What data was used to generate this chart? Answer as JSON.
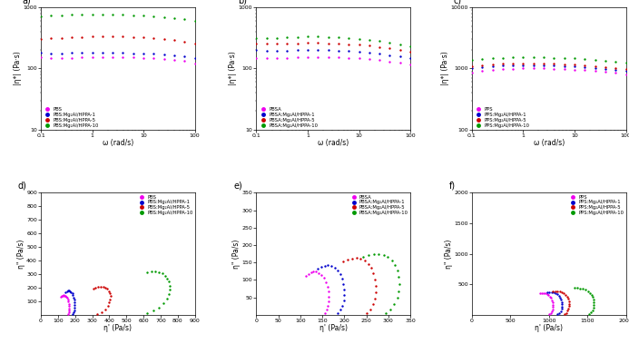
{
  "top_row": {
    "a": {
      "label": "a)",
      "ylabel": "|n*| (Pa.s)",
      "xlabel": "w (rad/s)",
      "ylim": [
        10,
        1000
      ],
      "xlim": [
        0.1,
        100
      ],
      "yticks_log": [
        10,
        100,
        1000
      ],
      "xticks_log": [
        0.1,
        1,
        10,
        100
      ],
      "series": [
        {
          "label": "PBS",
          "color": "#EE00EE",
          "omega": [
            0.1,
            0.158,
            0.251,
            0.398,
            0.631,
            1.0,
            1.585,
            2.512,
            3.981,
            6.31,
            10.0,
            15.85,
            25.12,
            39.81,
            63.1,
            100.0
          ],
          "eta": [
            155,
            148,
            148,
            150,
            152,
            154,
            155,
            155,
            154,
            152,
            150,
            147,
            143,
            139,
            132,
            122
          ]
        },
        {
          "label": "PBS:Mg2Al/HPPA-1",
          "color": "#0000CC",
          "omega": [
            0.1,
            0.158,
            0.251,
            0.398,
            0.631,
            1.0,
            1.585,
            2.512,
            3.981,
            6.31,
            10.0,
            15.85,
            25.12,
            39.81,
            63.1,
            100.0
          ],
          "eta": [
            180,
            178,
            178,
            180,
            182,
            183,
            183,
            182,
            181,
            179,
            177,
            174,
            170,
            165,
            158,
            148
          ]
        },
        {
          "label": "PBS:Mg2Al/HPPA-5",
          "color": "#CC0000",
          "omega": [
            0.1,
            0.158,
            0.251,
            0.398,
            0.631,
            1.0,
            1.585,
            2.512,
            3.981,
            6.31,
            10.0,
            15.85,
            25.12,
            39.81,
            63.1,
            100.0
          ],
          "eta": [
            305,
            310,
            318,
            325,
            330,
            333,
            335,
            334,
            332,
            328,
            322,
            314,
            304,
            291,
            275,
            255
          ]
        },
        {
          "label": "PBS:Mg2Al/HPPA-10",
          "color": "#009900",
          "omega": [
            0.1,
            0.158,
            0.251,
            0.398,
            0.631,
            1.0,
            1.585,
            2.512,
            3.981,
            6.31,
            10.0,
            15.85,
            25.12,
            39.81,
            63.1,
            100.0
          ],
          "eta": [
            720,
            740,
            752,
            760,
            765,
            768,
            770,
            768,
            764,
            755,
            742,
            726,
            705,
            680,
            648,
            605
          ]
        }
      ]
    },
    "b": {
      "label": "b)",
      "ylabel": "|n*| (Pa.s)",
      "xlabel": "w (rad/s)",
      "ylim": [
        10,
        1000
      ],
      "xlim": [
        0.1,
        100
      ],
      "yticks_log": [
        10,
        100,
        1000
      ],
      "xticks_log": [
        0.1,
        1,
        10,
        100
      ],
      "series": [
        {
          "label": "PBSA",
          "color": "#EE00EE",
          "omega": [
            0.1,
            0.158,
            0.251,
            0.398,
            0.631,
            1.0,
            1.585,
            2.512,
            3.981,
            6.31,
            10.0,
            15.85,
            25.12,
            39.81,
            63.1,
            100.0
          ],
          "eta": [
            150,
            148,
            148,
            150,
            152,
            154,
            155,
            154,
            152,
            149,
            146,
            142,
            137,
            131,
            124,
            116
          ]
        },
        {
          "label": "PBSA:Mg2Al/HPPA-1",
          "color": "#0000CC",
          "omega": [
            0.1,
            0.158,
            0.251,
            0.398,
            0.631,
            1.0,
            1.585,
            2.512,
            3.981,
            6.31,
            10.0,
            15.85,
            25.12,
            39.81,
            63.1,
            100.0
          ],
          "eta": [
            200,
            198,
            196,
            198,
            200,
            202,
            202,
            200,
            197,
            193,
            188,
            182,
            175,
            167,
            158,
            148
          ]
        },
        {
          "label": "PBSA:Mg2Al/HPPA-5",
          "color": "#CC0000",
          "omega": [
            0.1,
            0.158,
            0.251,
            0.398,
            0.631,
            1.0,
            1.585,
            2.512,
            3.981,
            6.31,
            10.0,
            15.85,
            25.12,
            39.81,
            63.1,
            100.0
          ],
          "eta": [
            255,
            255,
            255,
            258,
            260,
            262,
            262,
            260,
            256,
            250,
            244,
            236,
            226,
            214,
            201,
            187
          ]
        },
        {
          "label": "PBSA:Mg2Al/HPPA-10",
          "color": "#009900",
          "omega": [
            0.1,
            0.158,
            0.251,
            0.398,
            0.631,
            1.0,
            1.585,
            2.512,
            3.981,
            6.31,
            10.0,
            15.85,
            25.12,
            39.81,
            63.1,
            100.0
          ],
          "eta": [
            310,
            315,
            320,
            325,
            330,
            332,
            332,
            330,
            325,
            318,
            308,
            297,
            283,
            267,
            250,
            232
          ]
        }
      ]
    },
    "c": {
      "label": "c)",
      "ylabel": "|n*| (Pa.s)",
      "xlabel": "w (rad/s)",
      "ylim": [
        100,
        10000
      ],
      "xlim": [
        0.1,
        100
      ],
      "yticks_log": [
        100,
        1000,
        10000
      ],
      "xticks_log": [
        0.1,
        1,
        10,
        100
      ],
      "series": [
        {
          "label": "PPS",
          "color": "#EE00EE",
          "omega": [
            0.1,
            0.158,
            0.251,
            0.398,
            0.631,
            1.0,
            1.585,
            2.512,
            3.981,
            6.31,
            10.0,
            15.85,
            25.12,
            39.81,
            63.1,
            100.0
          ],
          "eta": [
            870,
            910,
            945,
            975,
            995,
            1005,
            1008,
            1005,
            996,
            982,
            964,
            942,
            916,
            886,
            852,
            812
          ]
        },
        {
          "label": "PPS:Mg2Al/HPPA-1",
          "color": "#0000CC",
          "omega": [
            0.1,
            0.158,
            0.251,
            0.398,
            0.631,
            1.0,
            1.585,
            2.512,
            3.981,
            6.31,
            10.0,
            15.85,
            25.12,
            39.81,
            63.1,
            100.0
          ],
          "eta": [
            1020,
            1060,
            1090,
            1110,
            1122,
            1128,
            1128,
            1122,
            1112,
            1096,
            1075,
            1050,
            1020,
            985,
            946,
            902
          ]
        },
        {
          "label": "PPS:Mg2Al/HPPA-5",
          "color": "#CC0000",
          "omega": [
            0.1,
            0.158,
            0.251,
            0.398,
            0.631,
            1.0,
            1.585,
            2.512,
            3.981,
            6.31,
            10.0,
            15.85,
            25.12,
            39.81,
            63.1,
            100.0
          ],
          "eta": [
            1100,
            1145,
            1178,
            1200,
            1215,
            1222,
            1222,
            1215,
            1202,
            1184,
            1162,
            1135,
            1103,
            1066,
            1024,
            978
          ]
        },
        {
          "label": "PPS:Mg2Al/HPPA-10",
          "color": "#009900",
          "omega": [
            0.1,
            0.158,
            0.251,
            0.398,
            0.631,
            1.0,
            1.585,
            2.512,
            3.981,
            6.31,
            10.0,
            15.85,
            25.12,
            39.81,
            63.1,
            100.0
          ],
          "eta": [
            1380,
            1430,
            1470,
            1500,
            1520,
            1530,
            1530,
            1522,
            1508,
            1488,
            1462,
            1430,
            1392,
            1348,
            1298,
            1242
          ]
        }
      ]
    }
  },
  "bottom_row": {
    "d": {
      "label": "d)",
      "ylabel": "n'' (Pa/s)",
      "xlabel": "n' (Pa/s)",
      "xlim": [
        0,
        900
      ],
      "ylim": [
        0,
        900
      ],
      "xticks": [
        0,
        100,
        200,
        300,
        400,
        500,
        600,
        700,
        800,
        900
      ],
      "yticks": [
        100,
        200,
        300,
        400,
        500,
        600,
        700,
        800,
        900
      ],
      "series": [
        {
          "label": "PBS",
          "color": "#EE00EE",
          "x": [
            158,
            162,
            165,
            166,
            166,
            164,
            161,
            157,
            153,
            148,
            143,
            138,
            133,
            128,
            123,
            118
          ],
          "y": [
            8,
            18,
            32,
            48,
            65,
            82,
            98,
            112,
            124,
            133,
            138,
            142,
            143,
            141,
            137,
            130
          ]
        },
        {
          "label": "PBS:Mg2Al/HPPA-1",
          "color": "#0000CC",
          "x": [
            185,
            190,
            194,
            197,
            198,
            197,
            195,
            192,
            188,
            183,
            177,
            171,
            165,
            158,
            152,
            145
          ],
          "y": [
            8,
            18,
            32,
            50,
            70,
            90,
            110,
            128,
            144,
            157,
            167,
            174,
            177,
            177,
            174,
            168
          ]
        },
        {
          "label": "PBS:Mg2Al/HPPA-5",
          "color": "#CC0000",
          "x": [
            330,
            355,
            375,
            390,
            400,
            405,
            406,
            403,
            397,
            388,
            377,
            364,
            350,
            335,
            320,
            305
          ],
          "y": [
            8,
            22,
            42,
            65,
            90,
            115,
            138,
            159,
            176,
            190,
            200,
            206,
            208,
            206,
            200,
            192
          ]
        },
        {
          "label": "PBS:Mg2Al/HPPA-10",
          "color": "#009900",
          "x": [
            620,
            660,
            692,
            718,
            736,
            748,
            754,
            754,
            750,
            740,
            726,
            709,
            689,
            668,
            646,
            623
          ],
          "y": [
            12,
            30,
            55,
            85,
            118,
            152,
            185,
            216,
            244,
            268,
            288,
            304,
            314,
            320,
            320,
            315
          ]
        }
      ]
    },
    "e": {
      "label": "e)",
      "ylabel": "n'' (Pa/s)",
      "xlabel": "n' (Pa/s)",
      "xlim": [
        0,
        350
      ],
      "ylim": [
        0,
        350
      ],
      "xticks": [
        0,
        50,
        100,
        150,
        200,
        250,
        300,
        350
      ],
      "yticks": [
        50,
        100,
        150,
        200,
        250,
        300,
        350
      ],
      "series": [
        {
          "label": "PBSA",
          "color": "#EE00EE",
          "x": [
            155,
            160,
            163,
            165,
            165,
            164,
            161,
            157,
            153,
            148,
            142,
            136,
            130,
            124,
            118,
            112
          ],
          "y": [
            5,
            14,
            25,
            38,
            52,
            67,
            81,
            94,
            105,
            114,
            120,
            124,
            125,
            123,
            118,
            112
          ]
        },
        {
          "label": "PBSA:Mg2Al/HPPA-1",
          "color": "#0000CC",
          "x": [
            185,
            191,
            196,
            199,
            200,
            200,
            198,
            195,
            190,
            185,
            178,
            171,
            163,
            155,
            147,
            139
          ],
          "y": [
            5,
            14,
            26,
            40,
            56,
            72,
            88,
            103,
            116,
            127,
            135,
            140,
            142,
            141,
            138,
            132
          ]
        },
        {
          "label": "PBSA:Mg2Al/HPPA-5",
          "color": "#CC0000",
          "x": [
            250,
            258,
            265,
            270,
            272,
            272,
            270,
            266,
            261,
            254,
            246,
            237,
            228,
            218,
            208,
            198
          ],
          "y": [
            5,
            16,
            30,
            47,
            65,
            84,
            102,
            119,
            134,
            146,
            155,
            161,
            163,
            162,
            158,
            152
          ]
        },
        {
          "label": "PBSA:Mg2Al/HPPA-10",
          "color": "#009900",
          "x": [
            295,
            305,
            313,
            320,
            324,
            325,
            324,
            320,
            315,
            308,
            299,
            289,
            278,
            267,
            255,
            243
          ],
          "y": [
            5,
            16,
            31,
            49,
            68,
            88,
            108,
            126,
            142,
            155,
            165,
            172,
            175,
            175,
            171,
            165
          ]
        }
      ]
    },
    "f": {
      "label": "f)",
      "ylabel": "n'' (Pa/s)",
      "xlabel": "n' (Pa/s)",
      "xlim": [
        0,
        2000
      ],
      "ylim": [
        0,
        2000
      ],
      "xticks": [
        0,
        500,
        1000,
        1500,
        2000
      ],
      "yticks": [
        500,
        1000,
        1500,
        2000
      ],
      "series": [
        {
          "label": "PPS",
          "color": "#EE00EE",
          "x": [
            1005,
            1025,
            1040,
            1050,
            1055,
            1054,
            1050,
            1042,
            1030,
            1015,
            997,
            977,
            955,
            932,
            908,
            883
          ],
          "y": [
            12,
            32,
            60,
            93,
            130,
            168,
            206,
            242,
            274,
            302,
            325,
            342,
            354,
            360,
            360,
            354
          ]
        },
        {
          "label": "PPS:Mg2Al/HPPA-1",
          "color": "#0000CC",
          "x": [
            1115,
            1135,
            1152,
            1164,
            1170,
            1171,
            1167,
            1158,
            1145,
            1128,
            1108,
            1085,
            1060,
            1033,
            1005,
            976
          ],
          "y": [
            12,
            32,
            60,
            95,
            132,
            172,
            210,
            246,
            279,
            308,
            332,
            350,
            363,
            370,
            371,
            366
          ]
        },
        {
          "label": "PPS:Mg2Al/HPPA-5",
          "color": "#CC0000",
          "x": [
            1200,
            1222,
            1240,
            1253,
            1260,
            1262,
            1258,
            1248,
            1234,
            1215,
            1193,
            1168,
            1141,
            1112,
            1082,
            1051
          ],
          "y": [
            12,
            34,
            64,
            100,
            140,
            182,
            222,
            260,
            294,
            324,
            348,
            368,
            381,
            388,
            389,
            384
          ]
        },
        {
          "label": "PPS:Mg2Al/HPPA-10",
          "color": "#009900",
          "x": [
            1520,
            1545,
            1565,
            1578,
            1585,
            1586,
            1581,
            1570,
            1554,
            1532,
            1506,
            1476,
            1443,
            1407,
            1370,
            1331
          ],
          "y": [
            14,
            38,
            72,
            112,
            156,
            202,
            246,
            288,
            326,
            360,
            388,
            410,
            426,
            436,
            440,
            438
          ]
        }
      ]
    }
  }
}
